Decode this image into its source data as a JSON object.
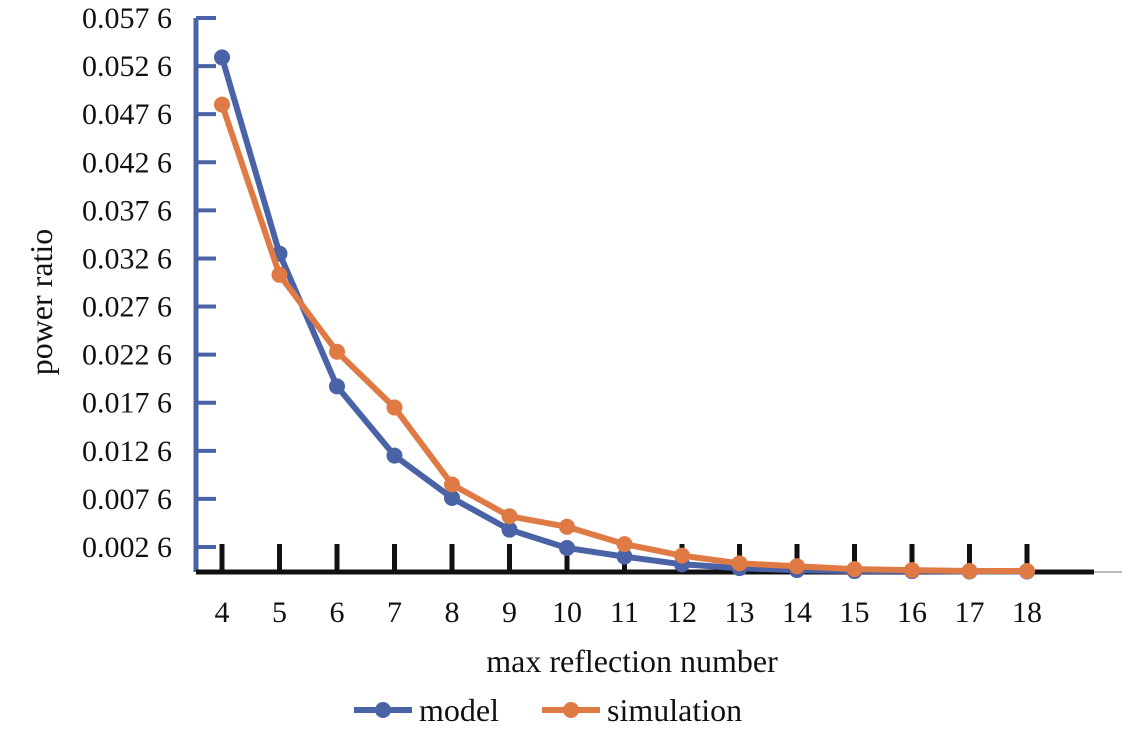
{
  "chart_data": {
    "type": "line",
    "title": "",
    "xlabel": "max reflection number",
    "ylabel": "power ratio",
    "x": [
      4,
      5,
      6,
      7,
      8,
      9,
      10,
      11,
      12,
      13,
      14,
      15,
      16,
      17,
      18
    ],
    "x_tick_labels": [
      "4",
      "5",
      "6",
      "7",
      "8",
      "9",
      "10",
      "11",
      "12",
      "13",
      "14",
      "15",
      "16",
      "17",
      "18"
    ],
    "y_ticks": [
      0.0026,
      0.0076,
      0.0126,
      0.0176,
      0.0226,
      0.0276,
      0.0326,
      0.0376,
      0.0426,
      0.0476,
      0.0526,
      0.0576
    ],
    "y_tick_labels": [
      "0.002 6",
      "0.007 6",
      "0.012 6",
      "0.017 6",
      "0.022 6",
      "0.027 6",
      "0.032 6",
      "0.037 6",
      "0.042 6",
      "0.047 6",
      "0.052 6",
      "0.057 6"
    ],
    "ylim": [
      0,
      0.0576
    ],
    "xlim": [
      4,
      18
    ],
    "grid": false,
    "legend": "bottom",
    "series": [
      {
        "name": "model",
        "color": "#4a62a6",
        "values": [
          0.0535,
          0.0331,
          0.0193,
          0.0121,
          0.0077,
          0.0044,
          0.0025,
          0.0016,
          0.0008,
          0.0004,
          0.0002,
          0.0001,
          0.0001,
          5e-05,
          5e-05
        ]
      },
      {
        "name": "simulation",
        "color": "#e07a45",
        "values": [
          0.0486,
          0.0309,
          0.0229,
          0.0171,
          0.0091,
          0.0058,
          0.0047,
          0.0029,
          0.0017,
          0.0009,
          0.0006,
          0.0003,
          0.0002,
          0.0001,
          0.0001
        ]
      }
    ]
  }
}
